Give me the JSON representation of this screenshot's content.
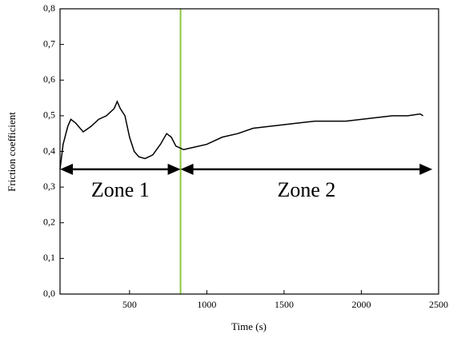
{
  "chart_data": {
    "type": "line",
    "x_label": "Time (s)",
    "y_label": "Friction coefficient",
    "x": [
      50,
      70,
      100,
      120,
      150,
      200,
      250,
      300,
      350,
      400,
      420,
      440,
      470,
      500,
      530,
      560,
      600,
      650,
      700,
      740,
      770,
      800,
      850,
      900,
      1000,
      1100,
      1200,
      1300,
      1400,
      1500,
      1600,
      1700,
      1800,
      1900,
      2000,
      2100,
      2200,
      2300,
      2380,
      2400
    ],
    "series": [
      {
        "color": "#000000",
        "values": [
          0.35,
          0.42,
          0.47,
          0.49,
          0.48,
          0.455,
          0.47,
          0.49,
          0.5,
          0.52,
          0.54,
          0.52,
          0.5,
          0.44,
          0.4,
          0.385,
          0.38,
          0.39,
          0.42,
          0.45,
          0.44,
          0.415,
          0.405,
          0.41,
          0.42,
          0.44,
          0.45,
          0.465,
          0.47,
          0.475,
          0.48,
          0.485,
          0.485,
          0.485,
          0.49,
          0.495,
          0.5,
          0.5,
          0.505,
          0.5
        ]
      }
    ],
    "xlim": [
      50,
      2500
    ],
    "ylim": [
      0,
      0.8
    ],
    "xticks": [
      500,
      1000,
      1500,
      2000,
      2500
    ],
    "yticks": [
      {
        "value": 0,
        "label": "0,0"
      },
      {
        "value": 0.1,
        "label": "0,1"
      },
      {
        "value": 0.2,
        "label": "0,2"
      },
      {
        "value": 0.3,
        "label": "0,3"
      },
      {
        "value": 0.4,
        "label": "0,4"
      },
      {
        "value": 0.5,
        "label": "0,5"
      },
      {
        "value": 0.6,
        "label": "0,6"
      },
      {
        "value": 0.7,
        "label": "0,7"
      },
      {
        "value": 0.8,
        "label": "0,8"
      }
    ],
    "vline": {
      "x": 830,
      "color": "#8dc63f"
    },
    "zones": [
      {
        "text": "Zone 1",
        "x": [
          50,
          830
        ],
        "y": 0.35
      },
      {
        "text": "Zone 2",
        "x": [
          830,
          2460
        ],
        "y": 0.35
      }
    ]
  }
}
